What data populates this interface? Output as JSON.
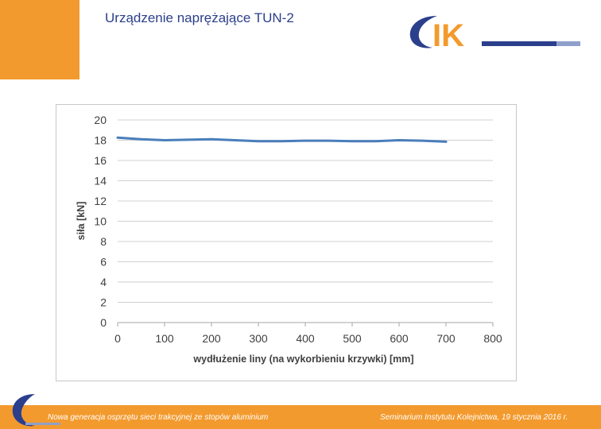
{
  "slide": {
    "title": "Urządzenie naprężające TUN-2",
    "logo_text": "IK",
    "footer_left": "Nowa generacja osprzętu sieci trakcyjnej ze stopów aluminium",
    "footer_right": "Seminarium Instytutu Kolejnictwa, 19 stycznia 2016 r."
  },
  "colors": {
    "accent_orange": "#f39a2e",
    "title_blue": "#2b3f8c",
    "series_blue": "#4a7ebb",
    "logo_blue": "#2b3f8c"
  },
  "chart_data": {
    "type": "line",
    "title": "",
    "xlabel": "wydłużenie liny (na wykorbieniu krzywki) [mm]",
    "ylabel": "siła [kN]",
    "xlim": [
      0,
      800
    ],
    "ylim": [
      0,
      20
    ],
    "xticks": [
      0,
      100,
      200,
      300,
      400,
      500,
      600,
      700,
      800
    ],
    "yticks": [
      0,
      2,
      4,
      6,
      8,
      10,
      12,
      14,
      16,
      18,
      20
    ],
    "grid": "horizontal",
    "series": [
      {
        "x": [
          0,
          50,
          100,
          150,
          200,
          250,
          300,
          350,
          400,
          450,
          500,
          550,
          600,
          650,
          700
        ],
        "y": [
          18.25,
          18.1,
          18.0,
          18.05,
          18.1,
          18.0,
          17.9,
          17.9,
          17.95,
          17.95,
          17.9,
          17.9,
          18.0,
          17.95,
          17.85
        ]
      }
    ]
  }
}
